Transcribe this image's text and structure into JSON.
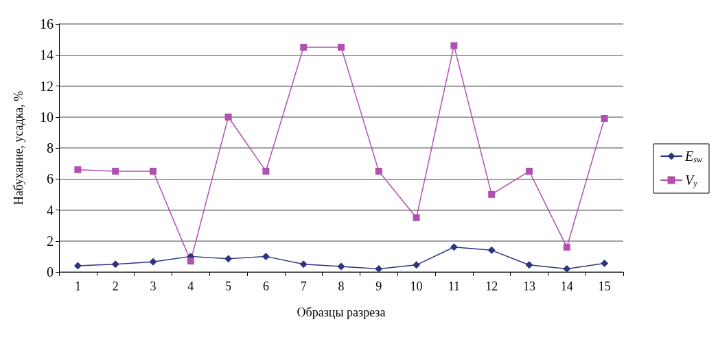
{
  "chart_data": {
    "type": "line",
    "xlabel": "Образцы разреза",
    "ylabel": "Набухание, усадка, %",
    "categories": [
      "1",
      "2",
      "3",
      "4",
      "5",
      "6",
      "7",
      "8",
      "9",
      "10",
      "11",
      "12",
      "13",
      "14",
      "15"
    ],
    "series": [
      {
        "name": "E$_{sw}$",
        "color": "#2b3580",
        "marker": "diamond",
        "values": [
          0.4,
          0.5,
          0.65,
          1.0,
          0.85,
          1.0,
          0.5,
          0.35,
          0.2,
          0.45,
          1.6,
          1.4,
          0.45,
          0.2,
          0.55
        ]
      },
      {
        "name": "V$_{y}$",
        "color": "#b050b0",
        "marker": "square",
        "values": [
          6.6,
          6.5,
          6.5,
          0.7,
          10.0,
          6.5,
          14.5,
          14.5,
          6.5,
          3.5,
          14.6,
          5.0,
          6.5,
          1.6,
          9.9
        ]
      }
    ],
    "ylim": [
      0,
      16
    ],
    "yticks": [
      0,
      2,
      4,
      6,
      8,
      10,
      12,
      14,
      16
    ],
    "grid": "y",
    "legend": "right",
    "line_style": "solid"
  }
}
